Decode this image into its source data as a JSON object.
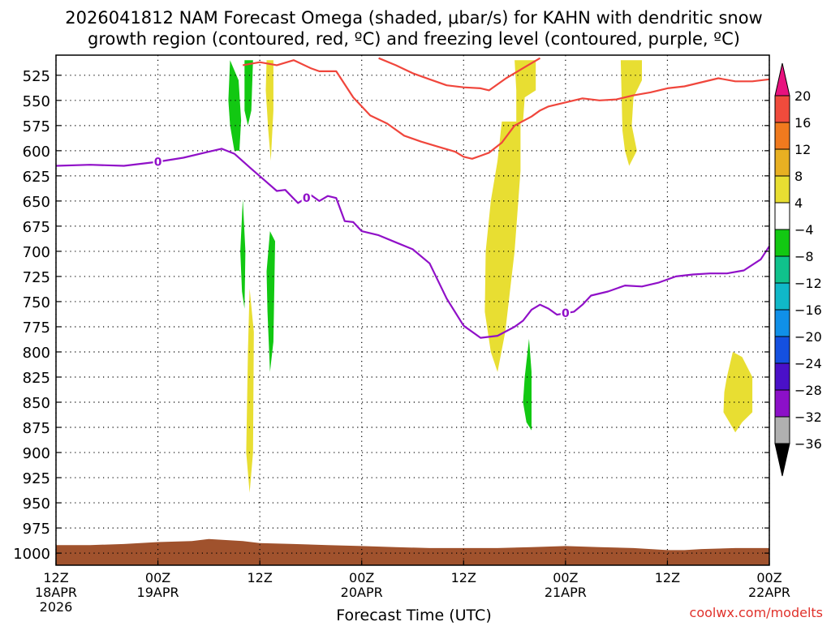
{
  "chart_data": {
    "type": "contour",
    "title_line1": "2026041812 NAM Forecast Omega (shaded, μbar/s) for KAHN with dendritic snow",
    "title_line2": "growth region (contoured, red, ºC) and freezing level (contoured, purple, ºC)",
    "xlabel": "Forecast Time (UTC)",
    "credit": "coolwx.com/modelts",
    "y_axis": {
      "unit": "hPa",
      "ticks": [
        525,
        550,
        575,
        600,
        625,
        650,
        675,
        700,
        725,
        750,
        775,
        800,
        825,
        850,
        875,
        900,
        925,
        950,
        975,
        1000
      ],
      "range": [
        505,
        1012
      ]
    },
    "x_axis": {
      "unit": "hours from 2026-04-18 12Z",
      "range": [
        0,
        84
      ],
      "ticks": [
        {
          "hour": 0,
          "line1": "12Z",
          "line2": "18APR",
          "line3": "2026"
        },
        {
          "hour": 12,
          "line1": "00Z",
          "line2": "19APR",
          "line3": ""
        },
        {
          "hour": 24,
          "line1": "12Z",
          "line2": "",
          "line3": ""
        },
        {
          "hour": 36,
          "line1": "00Z",
          "line2": "20APR",
          "line3": ""
        },
        {
          "hour": 48,
          "line1": "12Z",
          "line2": "",
          "line3": ""
        },
        {
          "hour": 60,
          "line1": "00Z",
          "line2": "21APR",
          "line3": ""
        },
        {
          "hour": 72,
          "line1": "12Z",
          "line2": "",
          "line3": ""
        },
        {
          "hour": 84,
          "line1": "00Z",
          "line2": "22APR",
          "line3": ""
        }
      ]
    },
    "grid": true,
    "colorbar": {
      "labels": [
        "20",
        "16",
        "12",
        "8",
        "4",
        "−4",
        "−8",
        "−12",
        "−16",
        "−20",
        "−24",
        "−28",
        "−32",
        "−36"
      ],
      "colors": [
        "#e8127e",
        "#f04b3c",
        "#f07a1e",
        "#e8b022",
        "#e8de32",
        "#ffffff",
        "#12c812",
        "#10c28c",
        "#10b8c8",
        "#1090e8",
        "#1450e0",
        "#4a10c8",
        "#8c10c8",
        "#b0b0b0",
        "#000000"
      ]
    },
    "freezing_level": {
      "label": "0",
      "color": "#9010c8",
      "label_hours": [
        12,
        29.5,
        60
      ],
      "points": [
        [
          0,
          615
        ],
        [
          4,
          614
        ],
        [
          8,
          615
        ],
        [
          12,
          611
        ],
        [
          15,
          607
        ],
        [
          18,
          601
        ],
        [
          19.5,
          598
        ],
        [
          21,
          603
        ],
        [
          23,
          618
        ],
        [
          24.5,
          629
        ],
        [
          26,
          640
        ],
        [
          27,
          639
        ],
        [
          28.5,
          652
        ],
        [
          30,
          644
        ],
        [
          31,
          650
        ],
        [
          32,
          645
        ],
        [
          33,
          647
        ],
        [
          34,
          670
        ],
        [
          35,
          671
        ],
        [
          36,
          680
        ],
        [
          38,
          684
        ],
        [
          40,
          691
        ],
        [
          42,
          698
        ],
        [
          44,
          712
        ],
        [
          46,
          747
        ],
        [
          48,
          774
        ],
        [
          50,
          786
        ],
        [
          52,
          784
        ],
        [
          54,
          775
        ],
        [
          55,
          769
        ],
        [
          56,
          758
        ],
        [
          57,
          753
        ],
        [
          58,
          757
        ],
        [
          59,
          763
        ],
        [
          61,
          760
        ],
        [
          62,
          753
        ],
        [
          63,
          744
        ],
        [
          65,
          740
        ],
        [
          67,
          734
        ],
        [
          69,
          735
        ],
        [
          71,
          731
        ],
        [
          73,
          725
        ],
        [
          75,
          723
        ],
        [
          77,
          722
        ],
        [
          79,
          722
        ],
        [
          81,
          719
        ],
        [
          83,
          708
        ],
        [
          84,
          695
        ]
      ]
    },
    "dgz_upper": {
      "color": "#f0463c",
      "points": [
        [
          22,
          515
        ],
        [
          24,
          512
        ],
        [
          26,
          515
        ],
        [
          28,
          510
        ],
        [
          30,
          518
        ],
        [
          31,
          521
        ],
        [
          33,
          521
        ],
        [
          35,
          547
        ],
        [
          37,
          565
        ],
        [
          39,
          573
        ],
        [
          41,
          585
        ],
        [
          43,
          591
        ],
        [
          45,
          596
        ],
        [
          47,
          601
        ],
        [
          48,
          606
        ],
        [
          49,
          608
        ],
        [
          50,
          605
        ],
        [
          51,
          602
        ],
        [
          52.5,
          592
        ],
        [
          54,
          575
        ],
        [
          56,
          566
        ],
        [
          57,
          560
        ],
        [
          58,
          556
        ],
        [
          60,
          552
        ],
        [
          62,
          548
        ],
        [
          64,
          550
        ],
        [
          66,
          549
        ],
        [
          68,
          545
        ],
        [
          70,
          542
        ],
        [
          72,
          538
        ],
        [
          74,
          536
        ],
        [
          76,
          532
        ],
        [
          78,
          528
        ],
        [
          80,
          531
        ],
        [
          82,
          531
        ],
        [
          84,
          529
        ]
      ]
    },
    "dgz_lower": {
      "color": "#f0463c",
      "points": [
        [
          38,
          508
        ],
        [
          40,
          515
        ],
        [
          42,
          523
        ],
        [
          44,
          529
        ],
        [
          46,
          535
        ],
        [
          48,
          537
        ],
        [
          50,
          538
        ],
        [
          51,
          540
        ],
        [
          53,
          528
        ],
        [
          55,
          518
        ],
        [
          57,
          508
        ]
      ]
    },
    "terrain_top_hpa": [
      [
        0,
        992
      ],
      [
        4,
        992
      ],
      [
        8,
        991
      ],
      [
        12,
        989
      ],
      [
        16,
        988
      ],
      [
        18,
        986
      ],
      [
        20,
        987
      ],
      [
        22,
        988
      ],
      [
        24,
        990
      ],
      [
        28,
        991
      ],
      [
        32,
        992
      ],
      [
        36,
        993
      ],
      [
        40,
        994
      ],
      [
        44,
        995
      ],
      [
        48,
        995
      ],
      [
        52,
        995
      ],
      [
        56,
        994
      ],
      [
        60,
        993
      ],
      [
        64,
        994
      ],
      [
        68,
        995
      ],
      [
        72,
        997
      ],
      [
        74,
        997
      ],
      [
        76,
        996
      ],
      [
        80,
        995
      ],
      [
        84,
        995
      ]
    ],
    "omega_regions": [
      {
        "value": "<-4",
        "color": "#12c812",
        "outline": [
          [
            20.5,
            510
          ],
          [
            21.5,
            530
          ],
          [
            21.8,
            570
          ],
          [
            21.6,
            600
          ],
          [
            21,
            600
          ],
          [
            20.5,
            575
          ],
          [
            20.3,
            550
          ]
        ]
      },
      {
        "value": "<-4",
        "color": "#12c812",
        "outline": [
          [
            22.2,
            510
          ],
          [
            23.2,
            510
          ],
          [
            23,
            560
          ],
          [
            22.6,
            575
          ],
          [
            22.2,
            560
          ]
        ]
      },
      {
        "value": "<-4",
        "color": "#12c812",
        "outline": [
          [
            22,
            648
          ],
          [
            22.3,
            700
          ],
          [
            22.2,
            757
          ],
          [
            21.9,
            740
          ],
          [
            21.7,
            700
          ]
        ]
      },
      {
        "value": "<-4",
        "color": "#12c812",
        "outline": [
          [
            25.2,
            680
          ],
          [
            25.8,
            690
          ],
          [
            25.6,
            790
          ],
          [
            25.2,
            820
          ],
          [
            24.9,
            760
          ],
          [
            24.8,
            720
          ]
        ]
      },
      {
        "value": "<-4",
        "color": "#12c812",
        "outline": [
          [
            55.7,
            787
          ],
          [
            56,
            820
          ],
          [
            56,
            878
          ],
          [
            55.4,
            870
          ],
          [
            55,
            850
          ],
          [
            55.2,
            825
          ]
        ]
      },
      {
        "value": ">4",
        "color": "#e8de32",
        "outline": [
          [
            24.8,
            510
          ],
          [
            25.6,
            510
          ],
          [
            25.6,
            560
          ],
          [
            25.3,
            610
          ],
          [
            25,
            580
          ],
          [
            24.7,
            540
          ]
        ]
      },
      {
        "value": ">4",
        "color": "#e8de32",
        "outline": [
          [
            22.8,
            737
          ],
          [
            23.3,
            780
          ],
          [
            23.2,
            900
          ],
          [
            22.8,
            940
          ],
          [
            22.4,
            900
          ],
          [
            22.6,
            800
          ]
        ]
      },
      {
        "value": ">4",
        "color": "#e8de32",
        "outline": [
          [
            52.5,
            571
          ],
          [
            54.7,
            571
          ],
          [
            54.7,
            620
          ],
          [
            54,
            700
          ],
          [
            52.9,
            780
          ],
          [
            52,
            820
          ],
          [
            51.2,
            800
          ],
          [
            50.5,
            760
          ],
          [
            50.6,
            700
          ],
          [
            51.2,
            650
          ],
          [
            52,
            610
          ]
        ]
      },
      {
        "value": ">4",
        "color": "#e8de32",
        "outline": [
          [
            54,
            510
          ],
          [
            56.5,
            510
          ],
          [
            56.5,
            540
          ],
          [
            55.2,
            547
          ],
          [
            55,
            571
          ],
          [
            54.2,
            571
          ],
          [
            54.2,
            540
          ]
        ]
      },
      {
        "value": ">4",
        "color": "#e8de32",
        "outline": [
          [
            66.5,
            510
          ],
          [
            69,
            510
          ],
          [
            69,
            530
          ],
          [
            68,
            547
          ],
          [
            67.8,
            575
          ],
          [
            68.4,
            600
          ],
          [
            67.5,
            615
          ],
          [
            67,
            600
          ],
          [
            66.7,
            580
          ]
        ]
      },
      {
        "value": ">4",
        "color": "#e8de32",
        "outline": [
          [
            79.7,
            800
          ],
          [
            80.8,
            805
          ],
          [
            82,
            825
          ],
          [
            82,
            860
          ],
          [
            80.8,
            870
          ],
          [
            80,
            880
          ],
          [
            79.3,
            870
          ],
          [
            78.6,
            860
          ],
          [
            78.7,
            840
          ],
          [
            79,
            825
          ]
        ]
      }
    ]
  }
}
